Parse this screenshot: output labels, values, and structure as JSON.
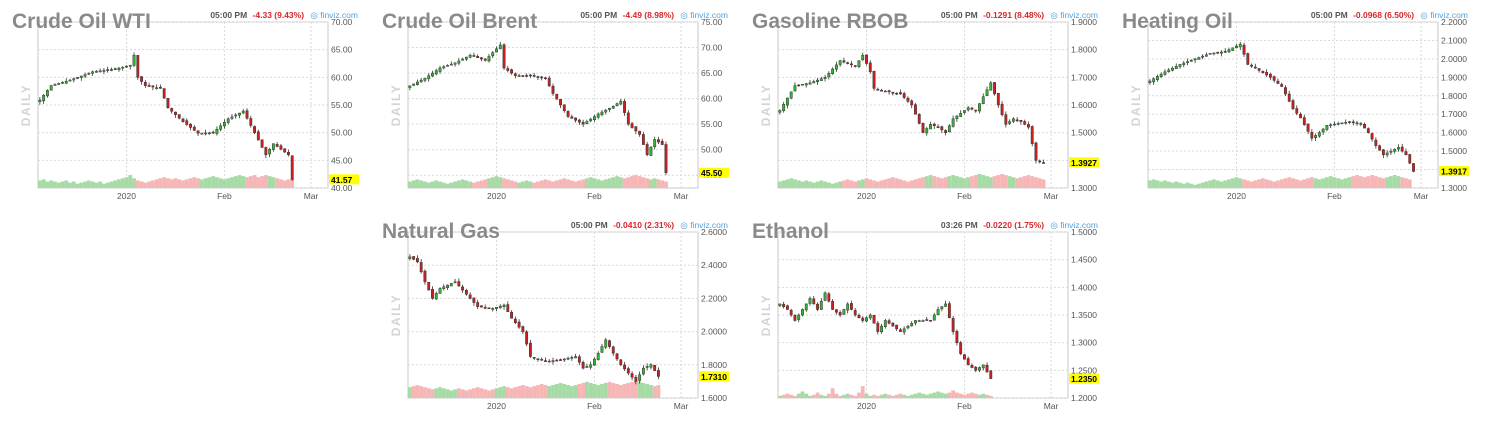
{
  "colors": {
    "up": "#2fb82f",
    "down": "#cc1f1f",
    "volume_up": "#a6dba6",
    "volume_down": "#f6b6b6",
    "last_price_bg": "#ffff00",
    "title": "#8a8a8a",
    "change": "#d6262b",
    "source": "#55a0d8",
    "grid": "#d9d9d9"
  },
  "icons": {
    "source": "finviz-logo-icon"
  },
  "chart_data": [
    {
      "type": "candlestick",
      "title": "Crude Oil WTI",
      "time": "05:00 PM",
      "change": "-4.33 (9.43%)",
      "source": "finviz.com",
      "period_label": "DAILY",
      "last_price": "41.57",
      "ylim": [
        40,
        70
      ],
      "y_ticks": [
        "70.00",
        "65.00",
        "60.00",
        "55.00",
        "50.00",
        "45.00",
        "40.00"
      ],
      "y_tick_values": [
        70,
        65,
        60,
        55,
        50,
        45,
        40
      ],
      "x_ticks": [
        "2020",
        "Feb",
        "Mar"
      ],
      "x_tick_index": [
        23,
        49,
        72
      ],
      "anchors": [
        [
          0,
          55.9
        ],
        [
          3,
          58.5
        ],
        [
          8,
          59.5
        ],
        [
          14,
          61
        ],
        [
          20,
          61.5
        ],
        [
          24,
          62.2
        ],
        [
          25,
          64
        ],
        [
          26,
          60
        ],
        [
          28,
          58.5
        ],
        [
          32,
          58
        ],
        [
          34,
          54.5
        ],
        [
          38,
          52
        ],
        [
          42,
          49.9
        ],
        [
          46,
          50
        ],
        [
          50,
          52.5
        ],
        [
          54,
          53.9
        ],
        [
          57,
          50
        ],
        [
          60,
          46
        ],
        [
          62,
          48
        ],
        [
          64,
          47
        ],
        [
          66,
          46
        ],
        [
          67,
          41.57
        ]
      ],
      "volume": [
        0.35,
        0.4,
        0.3,
        0.35,
        0.3,
        0.25,
        0.3,
        0.35,
        0.25,
        0.3,
        0.2,
        0.25,
        0.3,
        0.35,
        0.3,
        0.25,
        0.3,
        0.2,
        0.25,
        0.3,
        0.35,
        0.4,
        0.45,
        0.5,
        0.6,
        0.45,
        0.35,
        0.3,
        0.25,
        0.3,
        0.35,
        0.4,
        0.45,
        0.5,
        0.45,
        0.4,
        0.45,
        0.4,
        0.35,
        0.4,
        0.45,
        0.5,
        0.45,
        0.4,
        0.45,
        0.5,
        0.55,
        0.5,
        0.45,
        0.4,
        0.45,
        0.5,
        0.55,
        0.6,
        0.55,
        0.5,
        0.55,
        0.6,
        0.5,
        0.55,
        0.6,
        0.55,
        0.5,
        0.45,
        0.4,
        0.35,
        0.4,
        0.45
      ]
    },
    {
      "type": "candlestick",
      "title": "Crude Oil Brent",
      "time": "05:00 PM",
      "change": "-4.49 (8.98%)",
      "source": "finviz.com",
      "period_label": "DAILY",
      "last_price": "45.50",
      "ylim": [
        42.5,
        75
      ],
      "y_ticks": [
        "75.00",
        "70.00",
        "65.00",
        "60.00",
        "55.00",
        "50.00",
        "45.00"
      ],
      "y_tick_values": [
        75,
        70,
        65,
        60,
        55,
        50,
        45
      ],
      "x_ticks": [
        "2020",
        "Feb",
        "Mar"
      ],
      "x_tick_index": [
        23,
        49,
        72
      ],
      "anchors": [
        [
          0,
          62.5
        ],
        [
          4,
          64
        ],
        [
          8,
          66
        ],
        [
          12,
          67
        ],
        [
          16,
          68.5
        ],
        [
          20,
          67.5
        ],
        [
          22,
          69
        ],
        [
          24,
          70.5
        ],
        [
          25,
          66
        ],
        [
          28,
          64.5
        ],
        [
          32,
          64.5
        ],
        [
          36,
          64
        ],
        [
          38,
          61
        ],
        [
          42,
          56.5
        ],
        [
          46,
          55
        ],
        [
          50,
          57
        ],
        [
          54,
          58.5
        ],
        [
          56,
          59.5
        ],
        [
          58,
          55
        ],
        [
          61,
          53
        ],
        [
          63,
          49
        ],
        [
          65,
          52
        ],
        [
          67,
          51
        ],
        [
          68,
          45.5
        ]
      ],
      "volume": [
        0.3,
        0.35,
        0.4,
        0.35,
        0.3,
        0.25,
        0.3,
        0.35,
        0.3,
        0.25,
        0.2,
        0.25,
        0.3,
        0.35,
        0.4,
        0.35,
        0.3,
        0.25,
        0.3,
        0.35,
        0.4,
        0.45,
        0.5,
        0.55,
        0.5,
        0.45,
        0.4,
        0.35,
        0.3,
        0.25,
        0.3,
        0.35,
        0.3,
        0.25,
        0.3,
        0.35,
        0.4,
        0.35,
        0.3,
        0.35,
        0.4,
        0.45,
        0.4,
        0.35,
        0.3,
        0.35,
        0.4,
        0.45,
        0.5,
        0.45,
        0.4,
        0.35,
        0.4,
        0.45,
        0.5,
        0.55,
        0.5,
        0.45,
        0.5,
        0.55,
        0.6,
        0.55,
        0.5,
        0.45,
        0.4,
        0.45,
        0.4,
        0.35,
        0.3
      ]
    },
    {
      "type": "candlestick",
      "title": "Gasoline RBOB",
      "time": "05:00 PM",
      "change": "-0.1291 (8.48%)",
      "source": "finviz.com",
      "period_label": "DAILY",
      "last_price": "1.3927",
      "ylim": [
        1.3,
        1.9
      ],
      "y_ticks": [
        "1.9000",
        "1.8000",
        "1.7000",
        "1.6000",
        "1.5000",
        "1.4000",
        "1.3000"
      ],
      "y_tick_values": [
        1.9,
        1.8,
        1.7,
        1.6,
        1.5,
        1.4,
        1.3
      ],
      "x_ticks": [
        "2020",
        "Feb",
        "Mar"
      ],
      "x_tick_index": [
        23,
        49,
        72
      ],
      "anchors": [
        [
          0,
          1.58
        ],
        [
          4,
          1.67
        ],
        [
          8,
          1.68
        ],
        [
          12,
          1.7
        ],
        [
          16,
          1.76
        ],
        [
          20,
          1.74
        ],
        [
          22,
          1.78
        ],
        [
          24,
          1.72
        ],
        [
          25,
          1.66
        ],
        [
          28,
          1.65
        ],
        [
          32,
          1.64
        ],
        [
          35,
          1.6
        ],
        [
          38,
          1.5
        ],
        [
          40,
          1.53
        ],
        [
          42,
          1.52
        ],
        [
          44,
          1.5
        ],
        [
          46,
          1.55
        ],
        [
          50,
          1.59
        ],
        [
          52,
          1.58
        ],
        [
          54,
          1.63
        ],
        [
          56,
          1.68
        ],
        [
          58,
          1.6
        ],
        [
          60,
          1.53
        ],
        [
          62,
          1.55
        ],
        [
          64,
          1.54
        ],
        [
          66,
          1.52
        ],
        [
          68,
          1.4
        ],
        [
          70,
          1.39
        ]
      ],
      "volume": [
        0.3,
        0.35,
        0.4,
        0.45,
        0.4,
        0.35,
        0.3,
        0.35,
        0.3,
        0.25,
        0.3,
        0.35,
        0.3,
        0.25,
        0.2,
        0.25,
        0.3,
        0.35,
        0.4,
        0.35,
        0.3,
        0.35,
        0.4,
        0.45,
        0.4,
        0.35,
        0.3,
        0.35,
        0.4,
        0.45,
        0.5,
        0.45,
        0.4,
        0.35,
        0.3,
        0.35,
        0.4,
        0.45,
        0.5,
        0.55,
        0.6,
        0.55,
        0.5,
        0.45,
        0.5,
        0.55,
        0.6,
        0.55,
        0.5,
        0.45,
        0.5,
        0.55,
        0.6,
        0.65,
        0.6,
        0.55,
        0.5,
        0.55,
        0.6,
        0.65,
        0.6,
        0.55,
        0.5,
        0.45,
        0.5,
        0.55,
        0.6,
        0.55,
        0.5,
        0.45,
        0.4
      ]
    },
    {
      "type": "candlestick",
      "title": "Heating Oil",
      "time": "05:00 PM",
      "change": "-0.0968 (6.50%)",
      "source": "finviz.com",
      "period_label": "DAILY",
      "last_price": "1.3917",
      "ylim": [
        1.3,
        2.2
      ],
      "y_ticks": [
        "2.2000",
        "2.1000",
        "2.0000",
        "1.9000",
        "1.8000",
        "1.7000",
        "1.6000",
        "1.5000",
        "1.4000",
        "1.3000"
      ],
      "y_tick_values": [
        2.2,
        2.1,
        2.0,
        1.9,
        1.8,
        1.7,
        1.6,
        1.5,
        1.4,
        1.3
      ],
      "x_ticks": [
        "2020",
        "Feb",
        "Mar"
      ],
      "x_tick_index": [
        23,
        49,
        72
      ],
      "anchors": [
        [
          0,
          1.88
        ],
        [
          4,
          1.93
        ],
        [
          8,
          1.97
        ],
        [
          12,
          2.0
        ],
        [
          16,
          2.03
        ],
        [
          20,
          2.04
        ],
        [
          24,
          2.08
        ],
        [
          26,
          1.97
        ],
        [
          28,
          1.95
        ],
        [
          32,
          1.9
        ],
        [
          35,
          1.85
        ],
        [
          38,
          1.73
        ],
        [
          40,
          1.68
        ],
        [
          43,
          1.57
        ],
        [
          45,
          1.6
        ],
        [
          47,
          1.64
        ],
        [
          50,
          1.65
        ],
        [
          53,
          1.66
        ],
        [
          56,
          1.65
        ],
        [
          58,
          1.6
        ],
        [
          60,
          1.53
        ],
        [
          62,
          1.48
        ],
        [
          64,
          1.5
        ],
        [
          66,
          1.52
        ],
        [
          68,
          1.48
        ],
        [
          70,
          1.39
        ]
      ],
      "volume": [
        0.35,
        0.4,
        0.35,
        0.3,
        0.35,
        0.3,
        0.25,
        0.3,
        0.25,
        0.2,
        0.25,
        0.2,
        0.15,
        0.2,
        0.25,
        0.3,
        0.35,
        0.4,
        0.35,
        0.3,
        0.35,
        0.4,
        0.45,
        0.5,
        0.45,
        0.4,
        0.35,
        0.3,
        0.35,
        0.4,
        0.45,
        0.4,
        0.35,
        0.3,
        0.35,
        0.4,
        0.45,
        0.5,
        0.45,
        0.4,
        0.35,
        0.4,
        0.45,
        0.5,
        0.45,
        0.4,
        0.45,
        0.5,
        0.55,
        0.5,
        0.45,
        0.4,
        0.45,
        0.5,
        0.55,
        0.6,
        0.55,
        0.5,
        0.55,
        0.6,
        0.55,
        0.5,
        0.45,
        0.5,
        0.55,
        0.6,
        0.55,
        0.5,
        0.45,
        0.4
      ]
    },
    {
      "type": "candlestick",
      "title": "Natural Gas",
      "time": "05:00 PM",
      "change": "-0.0410 (2.31%)",
      "source": "finviz.com",
      "period_label": "DAILY",
      "last_price": "1.7310",
      "ylim": [
        1.6,
        2.6
      ],
      "y_ticks": [
        "2.6000",
        "2.4000",
        "2.2000",
        "2.0000",
        "1.8000",
        "1.6000"
      ],
      "y_tick_values": [
        2.6,
        2.4,
        2.2,
        2.0,
        1.8,
        1.6
      ],
      "x_ticks": [
        "2020",
        "Feb",
        "Mar"
      ],
      "x_tick_index": [
        23,
        49,
        72
      ],
      "anchors": [
        [
          0,
          2.45
        ],
        [
          2,
          2.42
        ],
        [
          4,
          2.3
        ],
        [
          6,
          2.2
        ],
        [
          8,
          2.26
        ],
        [
          12,
          2.3
        ],
        [
          14,
          2.25
        ],
        [
          18,
          2.15
        ],
        [
          22,
          2.14
        ],
        [
          25,
          2.16
        ],
        [
          27,
          2.08
        ],
        [
          30,
          2.0
        ],
        [
          32,
          1.85
        ],
        [
          36,
          1.82
        ],
        [
          40,
          1.83
        ],
        [
          44,
          1.85
        ],
        [
          46,
          1.78
        ],
        [
          48,
          1.8
        ],
        [
          50,
          1.87
        ],
        [
          52,
          1.95
        ],
        [
          54,
          1.87
        ],
        [
          56,
          1.8
        ],
        [
          58,
          1.75
        ],
        [
          60,
          1.7
        ],
        [
          62,
          1.78
        ],
        [
          64,
          1.8
        ],
        [
          66,
          1.73
        ]
      ],
      "volume": [
        0.5,
        0.55,
        0.6,
        0.55,
        0.5,
        0.45,
        0.4,
        0.45,
        0.5,
        0.45,
        0.4,
        0.35,
        0.4,
        0.45,
        0.4,
        0.35,
        0.4,
        0.45,
        0.5,
        0.45,
        0.4,
        0.35,
        0.4,
        0.45,
        0.5,
        0.55,
        0.5,
        0.45,
        0.5,
        0.55,
        0.6,
        0.55,
        0.5,
        0.55,
        0.6,
        0.65,
        0.6,
        0.55,
        0.6,
        0.65,
        0.7,
        0.65,
        0.6,
        0.55,
        0.6,
        0.65,
        0.7,
        0.75,
        0.7,
        0.65,
        0.6,
        0.65,
        0.7,
        0.75,
        0.7,
        0.65,
        0.6,
        0.65,
        0.7,
        0.75,
        0.8,
        0.75,
        0.7,
        0.65,
        0.6,
        0.55,
        0.6,
        0.65,
        0.7
      ]
    },
    {
      "type": "candlestick",
      "title": "Ethanol",
      "time": "03:26 PM",
      "change": "-0.0220 (1.75%)",
      "source": "finviz.com",
      "period_label": "DAILY",
      "last_price": "1.2350",
      "ylim": [
        1.2,
        1.5
      ],
      "y_ticks": [
        "1.5000",
        "1.4500",
        "1.4000",
        "1.3500",
        "1.3000",
        "1.2500",
        "1.2000"
      ],
      "y_tick_values": [
        1.5,
        1.45,
        1.4,
        1.35,
        1.3,
        1.25,
        1.2
      ],
      "x_ticks": [
        "2020",
        "Feb",
        "Mar"
      ],
      "x_tick_index": [
        23,
        49,
        72
      ],
      "anchors": [
        [
          0,
          1.37
        ],
        [
          2,
          1.36
        ],
        [
          4,
          1.34
        ],
        [
          6,
          1.36
        ],
        [
          8,
          1.38
        ],
        [
          10,
          1.36
        ],
        [
          12,
          1.39
        ],
        [
          14,
          1.36
        ],
        [
          16,
          1.35
        ],
        [
          18,
          1.37
        ],
        [
          20,
          1.35
        ],
        [
          22,
          1.34
        ],
        [
          24,
          1.35
        ],
        [
          26,
          1.32
        ],
        [
          28,
          1.34
        ],
        [
          30,
          1.33
        ],
        [
          32,
          1.32
        ],
        [
          34,
          1.33
        ],
        [
          36,
          1.34
        ],
        [
          38,
          1.34
        ],
        [
          40,
          1.34
        ],
        [
          42,
          1.36
        ],
        [
          44,
          1.37
        ],
        [
          46,
          1.32
        ],
        [
          48,
          1.28
        ],
        [
          50,
          1.26
        ],
        [
          52,
          1.25
        ],
        [
          54,
          1.26
        ],
        [
          56,
          1.235
        ]
      ],
      "volume": [
        0.1,
        0.15,
        0.2,
        0.15,
        0.1,
        0.2,
        0.3,
        0.2,
        0.1,
        0.15,
        0.25,
        0.15,
        0.1,
        0.2,
        0.45,
        0.2,
        0.1,
        0.15,
        0.2,
        0.15,
        0.1,
        0.25,
        0.55,
        0.2,
        0.1,
        0.15,
        0.1,
        0.15,
        0.2,
        0.15,
        0.1,
        0.15,
        0.2,
        0.15,
        0.1,
        0.15,
        0.2,
        0.25,
        0.2,
        0.15,
        0.2,
        0.25,
        0.3,
        0.25,
        0.2,
        0.25,
        0.35,
        0.25,
        0.2,
        0.15,
        0.2,
        0.25,
        0.2,
        0.15,
        0.2,
        0.15,
        0.1
      ]
    }
  ]
}
